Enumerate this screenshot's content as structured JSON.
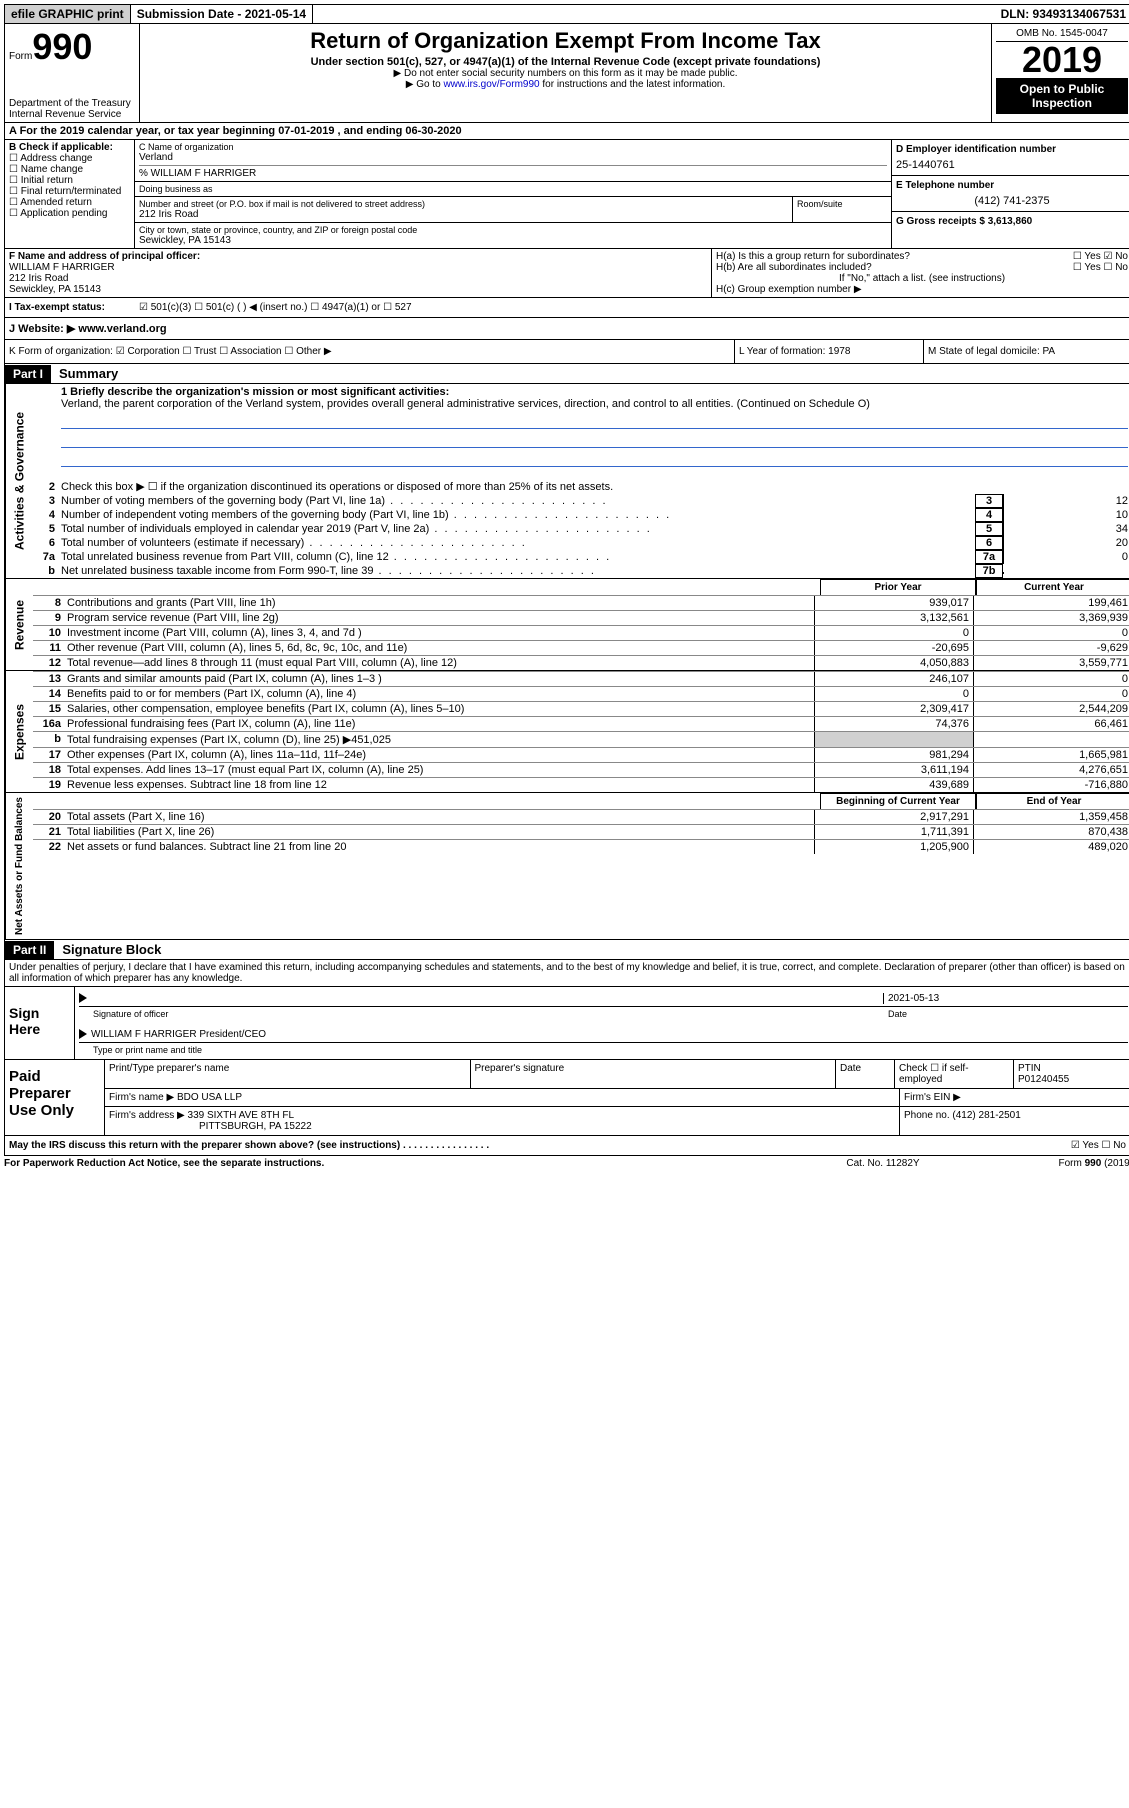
{
  "top": {
    "efile": "efile GRAPHIC print",
    "submission": "Submission Date - 2021-05-14",
    "dln": "DLN: 93493134067531"
  },
  "header": {
    "form_prefix": "Form",
    "form_number": "990",
    "dept1": "Department of the Treasury",
    "dept2": "Internal Revenue Service",
    "title": "Return of Organization Exempt From Income Tax",
    "subtitle": "Under section 501(c), 527, or 4947(a)(1) of the Internal Revenue Code (except private foundations)",
    "note1": "▶ Do not enter social security numbers on this form as it may be made public.",
    "note2_pre": "▶ Go to ",
    "note2_link": "www.irs.gov/Form990",
    "note2_post": " for instructions and the latest information.",
    "omb": "OMB No. 1545-0047",
    "year": "2019",
    "open": "Open to Public Inspection"
  },
  "row_a": "A For the 2019 calendar year, or tax year beginning 07-01-2019    , and ending 06-30-2020",
  "b": {
    "label": "B Check if applicable:",
    "items": [
      "Address change",
      "Name change",
      "Initial return",
      "Final return/terminated",
      "Amended return",
      "Application pending"
    ]
  },
  "c": {
    "name_label": "C Name of organization",
    "name": "Verland",
    "care_of": "% WILLIAM F HARRIGER",
    "dba_label": "Doing business as",
    "addr_label": "Number and street (or P.O. box if mail is not delivered to street address)",
    "room_label": "Room/suite",
    "street": "212 Iris Road",
    "city_label": "City or town, state or province, country, and ZIP or foreign postal code",
    "city": "Sewickley, PA  15143"
  },
  "d": {
    "ein_label": "D Employer identification number",
    "ein": "25-1440761",
    "tel_label": "E Telephone number",
    "tel": "(412) 741-2375",
    "gross_label": "G Gross receipts $ 3,613,860"
  },
  "f": {
    "label": "F  Name and address of principal officer:",
    "name": "WILLIAM F HARRIGER",
    "street": "212 Iris Road",
    "city": "Sewickley, PA  15143"
  },
  "h": {
    "a": "H(a)  Is this a group return for subordinates?",
    "a_ans": "☐ Yes  ☑ No",
    "b": "H(b)  Are all subordinates included?",
    "b_ans": "☐ Yes  ☐ No",
    "b_note": "If \"No,\" attach a list. (see instructions)",
    "c": "H(c)  Group exemption number ▶"
  },
  "i": {
    "label": "I   Tax-exempt status:",
    "opts": "☑ 501(c)(3)    ☐ 501(c) (  ) ◀ (insert no.)    ☐ 4947(a)(1) or   ☐ 527"
  },
  "j": {
    "label": "J   Website: ▶",
    "val": "www.verland.org"
  },
  "k": {
    "k": "K Form of organization:  ☑ Corporation  ☐ Trust  ☐ Association  ☐ Other ▶",
    "l": "L Year of formation: 1978",
    "m": "M State of legal domicile: PA"
  },
  "part1": {
    "tag": "Part I",
    "label": "Summary",
    "mission_label": "1  Briefly describe the organization's mission or most significant activities:",
    "mission": "Verland, the parent corporation of the Verland system, provides overall general administrative services, direction, and control to all entities. (Continued on Schedule O)",
    "line2": "Check this box ▶ ☐  if the organization discontinued its operations or disposed of more than 25% of its net assets.",
    "sections": {
      "gov": "Activities & Governance",
      "rev": "Revenue",
      "exp": "Expenses",
      "net": "Net Assets or Fund Balances"
    },
    "gov_lines": [
      {
        "n": "3",
        "d": "Number of voting members of the governing body (Part VI, line 1a)",
        "b": "3",
        "v": "12"
      },
      {
        "n": "4",
        "d": "Number of independent voting members of the governing body (Part VI, line 1b)",
        "b": "4",
        "v": "10"
      },
      {
        "n": "5",
        "d": "Total number of individuals employed in calendar year 2019 (Part V, line 2a)",
        "b": "5",
        "v": "34"
      },
      {
        "n": "6",
        "d": "Total number of volunteers (estimate if necessary)",
        "b": "6",
        "v": "20"
      },
      {
        "n": "7a",
        "d": "Total unrelated business revenue from Part VIII, column (C), line 12",
        "b": "7a",
        "v": "0"
      },
      {
        "n": "b",
        "d": "Net unrelated business taxable income from Form 990-T, line 39",
        "b": "7b",
        "v": ""
      }
    ],
    "col_hdr": {
      "c1": "Prior Year",
      "c2": "Current Year"
    },
    "rev_lines": [
      {
        "n": "8",
        "d": "Contributions and grants (Part VIII, line 1h)",
        "c1": "939,017",
        "c2": "199,461"
      },
      {
        "n": "9",
        "d": "Program service revenue (Part VIII, line 2g)",
        "c1": "3,132,561",
        "c2": "3,369,939"
      },
      {
        "n": "10",
        "d": "Investment income (Part VIII, column (A), lines 3, 4, and 7d )",
        "c1": "0",
        "c2": "0"
      },
      {
        "n": "11",
        "d": "Other revenue (Part VIII, column (A), lines 5, 6d, 8c, 9c, 10c, and 11e)",
        "c1": "-20,695",
        "c2": "-9,629"
      },
      {
        "n": "12",
        "d": "Total revenue—add lines 8 through 11 (must equal Part VIII, column (A), line 12)",
        "c1": "4,050,883",
        "c2": "3,559,771"
      }
    ],
    "exp_lines": [
      {
        "n": "13",
        "d": "Grants and similar amounts paid (Part IX, column (A), lines 1–3 )",
        "c1": "246,107",
        "c2": "0"
      },
      {
        "n": "14",
        "d": "Benefits paid to or for members (Part IX, column (A), line 4)",
        "c1": "0",
        "c2": "0"
      },
      {
        "n": "15",
        "d": "Salaries, other compensation, employee benefits (Part IX, column (A), lines 5–10)",
        "c1": "2,309,417",
        "c2": "2,544,209"
      },
      {
        "n": "16a",
        "d": "Professional fundraising fees (Part IX, column (A), line 11e)",
        "c1": "74,376",
        "c2": "66,461"
      },
      {
        "n": "b",
        "d": "Total fundraising expenses (Part IX, column (D), line 25) ▶451,025",
        "c1": "",
        "c2": "",
        "shade": true
      },
      {
        "n": "17",
        "d": "Other expenses (Part IX, column (A), lines 11a–11d, 11f–24e)",
        "c1": "981,294",
        "c2": "1,665,981"
      },
      {
        "n": "18",
        "d": "Total expenses. Add lines 13–17 (must equal Part IX, column (A), line 25)",
        "c1": "3,611,194",
        "c2": "4,276,651"
      },
      {
        "n": "19",
        "d": "Revenue less expenses. Subtract line 18 from line 12",
        "c1": "439,689",
        "c2": "-716,880"
      }
    ],
    "net_hdr": {
      "c1": "Beginning of Current Year",
      "c2": "End of Year"
    },
    "net_lines": [
      {
        "n": "20",
        "d": "Total assets (Part X, line 16)",
        "c1": "2,917,291",
        "c2": "1,359,458"
      },
      {
        "n": "21",
        "d": "Total liabilities (Part X, line 26)",
        "c1": "1,711,391",
        "c2": "870,438"
      },
      {
        "n": "22",
        "d": "Net assets or fund balances. Subtract line 21 from line 20",
        "c1": "1,205,900",
        "c2": "489,020"
      }
    ]
  },
  "part2": {
    "tag": "Part II",
    "label": "Signature Block",
    "penalty": "Under penalties of perjury, I declare that I have examined this return, including accompanying schedules and statements, and to the best of my knowledge and belief, it is true, correct, and complete. Declaration of preparer (other than officer) is based on all information of which preparer has any knowledge.",
    "sign_here": "Sign Here",
    "sig_officer": "Signature of officer",
    "sig_date_label": "Date",
    "sig_date": "2021-05-13",
    "name_title": "WILLIAM F HARRIGER  President/CEO",
    "type_label": "Type or print name and title",
    "paid": "Paid Preparer Use Only",
    "p_name_label": "Print/Type preparer's name",
    "p_sig_label": "Preparer's signature",
    "p_date_label": "Date",
    "p_check": "Check ☐ if self-employed",
    "ptin_label": "PTIN",
    "ptin": "P01240455",
    "firm_name_label": "Firm's name    ▶",
    "firm_name": "BDO USA LLP",
    "firm_ein_label": "Firm's EIN ▶",
    "firm_addr_label": "Firm's address ▶",
    "firm_addr1": "339 SIXTH AVE 8TH FL",
    "firm_addr2": "PITTSBURGH, PA  15222",
    "firm_phone_label": "Phone no.",
    "firm_phone": "(412) 281-2501",
    "discuss": "May the IRS discuss this return with the preparer shown above? (see instructions)",
    "discuss_ans": "☑ Yes  ☐ No"
  },
  "footer": {
    "pra": "For Paperwork Reduction Act Notice, see the separate instructions.",
    "cat": "Cat. No. 11282Y",
    "form": "Form 990 (2019)"
  }
}
